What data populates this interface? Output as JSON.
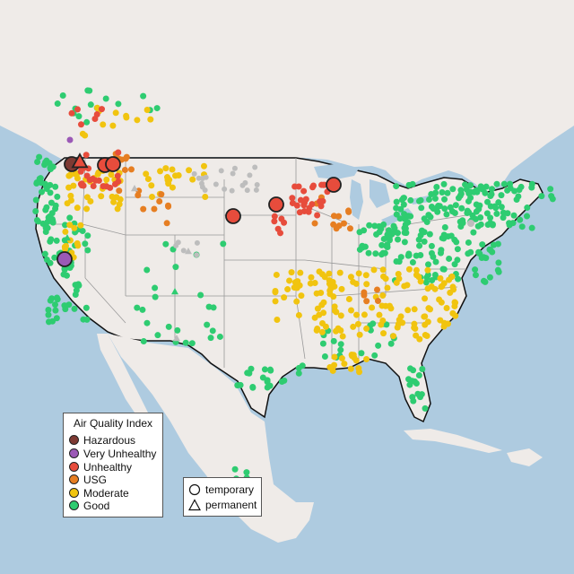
{
  "legend": {
    "title": "Air Quality Index",
    "categories": [
      {
        "label": "Hazardous",
        "color": "#7e3a33"
      },
      {
        "label": "Very Unhealthy",
        "color": "#9b59b6"
      },
      {
        "label": "Unhealthy",
        "color": "#e74c3c"
      },
      {
        "label": "USG",
        "color": "#e67e22"
      },
      {
        "label": "Moderate",
        "color": "#f1c40f"
      },
      {
        "label": "Good",
        "color": "#2ecc71"
      }
    ],
    "site_types": [
      {
        "label": "temporary",
        "shape": "circle"
      },
      {
        "label": "permanent",
        "shape": "triangle"
      }
    ]
  },
  "colors": {
    "land": "#efebe8",
    "water": "#aecbe0",
    "no_data": "#bdbdbd"
  }
}
